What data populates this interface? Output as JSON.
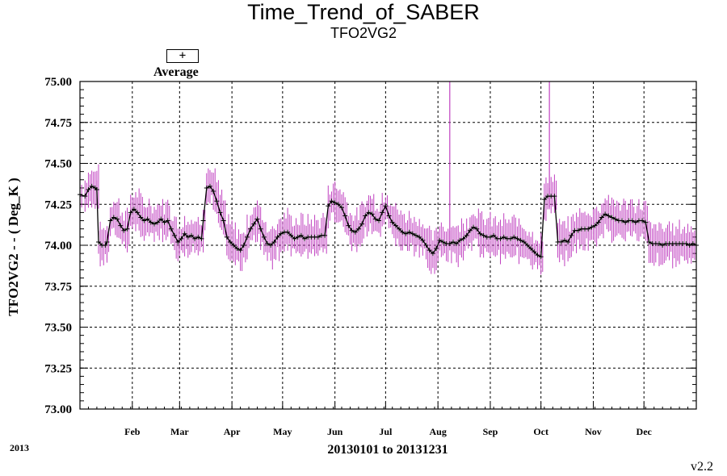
{
  "chart_data": {
    "type": "line",
    "title": "Time_Trend_of_SABER",
    "subtitle": "TFO2VG2",
    "ylabel": "TFO2VG2  - - ( Deg_K )",
    "xlabel": "20130101 to 20131231",
    "year_label": "2013",
    "version": "v2.2",
    "legend": {
      "symbol": "+",
      "label": "Average",
      "placement": "top-left"
    },
    "ylim": [
      73.0,
      75.0
    ],
    "yticks": [
      "75.00",
      "74.75",
      "74.50",
      "74.25",
      "74.00",
      "73.75",
      "73.50",
      "73.25",
      "73.00"
    ],
    "x_domain_day": [
      1,
      366
    ],
    "months": [
      {
        "label": "Feb",
        "day": 32
      },
      {
        "label": "Mar",
        "day": 60
      },
      {
        "label": "Apr",
        "day": 91
      },
      {
        "label": "May",
        "day": 121
      },
      {
        "label": "Jun",
        "day": 152
      },
      {
        "label": "Jul",
        "day": 182
      },
      {
        "label": "Aug",
        "day": 213
      },
      {
        "label": "Sep",
        "day": 244
      },
      {
        "label": "Oct",
        "day": 274
      },
      {
        "label": "Nov",
        "day": 305
      },
      {
        "label": "Dec",
        "day": 335
      }
    ],
    "grid": true,
    "series": [
      {
        "name": "Average",
        "color": "#000000",
        "errorbar_color": "#c040c0",
        "points": [
          [
            1,
            74.31
          ],
          [
            4,
            74.3
          ],
          [
            6,
            74.34
          ],
          [
            8,
            74.36
          ],
          [
            10,
            74.35
          ],
          [
            11,
            74.34
          ],
          [
            12,
            74.02
          ],
          [
            14,
            74.0
          ],
          [
            16,
            74.0
          ],
          [
            17,
            74.02
          ],
          [
            19,
            74.15
          ],
          [
            21,
            74.17
          ],
          [
            23,
            74.16
          ],
          [
            25,
            74.12
          ],
          [
            27,
            74.09
          ],
          [
            29,
            74.1
          ],
          [
            31,
            74.2
          ],
          [
            33,
            74.22
          ],
          [
            35,
            74.2
          ],
          [
            37,
            74.17
          ],
          [
            39,
            74.15
          ],
          [
            41,
            74.16
          ],
          [
            43,
            74.14
          ],
          [
            45,
            74.13
          ],
          [
            47,
            74.14
          ],
          [
            49,
            74.16
          ],
          [
            51,
            74.14
          ],
          [
            53,
            74.15
          ],
          [
            55,
            74.1
          ],
          [
            57,
            74.06
          ],
          [
            59,
            74.02
          ],
          [
            61,
            74.04
          ],
          [
            63,
            74.07
          ],
          [
            65,
            74.05
          ],
          [
            67,
            74.06
          ],
          [
            69,
            74.04
          ],
          [
            71,
            74.05
          ],
          [
            73,
            74.04
          ],
          [
            74,
            74.15
          ],
          [
            76,
            74.35
          ],
          [
            78,
            74.36
          ],
          [
            80,
            74.33
          ],
          [
            82,
            74.27
          ],
          [
            84,
            74.2
          ],
          [
            86,
            74.15
          ],
          [
            88,
            74.05
          ],
          [
            90,
            74.02
          ],
          [
            92,
            74.0
          ],
          [
            94,
            73.98
          ],
          [
            96,
            73.97
          ],
          [
            98,
            74.0
          ],
          [
            100,
            74.05
          ],
          [
            102,
            74.1
          ],
          [
            104,
            74.13
          ],
          [
            106,
            74.16
          ],
          [
            108,
            74.1
          ],
          [
            110,
            74.05
          ],
          [
            112,
            74.01
          ],
          [
            114,
            74.0
          ],
          [
            116,
            74.02
          ],
          [
            118,
            74.05
          ],
          [
            120,
            74.07
          ],
          [
            122,
            74.08
          ],
          [
            124,
            74.08
          ],
          [
            126,
            74.06
          ],
          [
            128,
            74.04
          ],
          [
            130,
            74.05
          ],
          [
            132,
            74.06
          ],
          [
            134,
            74.04
          ],
          [
            136,
            74.05
          ],
          [
            138,
            74.05
          ],
          [
            140,
            74.05
          ],
          [
            142,
            74.05
          ],
          [
            144,
            74.06
          ],
          [
            146,
            74.06
          ],
          [
            148,
            74.24
          ],
          [
            150,
            74.27
          ],
          [
            152,
            74.26
          ],
          [
            154,
            74.25
          ],
          [
            156,
            74.23
          ],
          [
            158,
            74.18
          ],
          [
            160,
            74.12
          ],
          [
            162,
            74.09
          ],
          [
            164,
            74.08
          ],
          [
            166,
            74.1
          ],
          [
            168,
            74.13
          ],
          [
            170,
            74.18
          ],
          [
            172,
            74.2
          ],
          [
            174,
            74.19
          ],
          [
            176,
            74.16
          ],
          [
            178,
            74.15
          ],
          [
            180,
            74.2
          ],
          [
            182,
            74.24
          ],
          [
            184,
            74.18
          ],
          [
            186,
            74.14
          ],
          [
            188,
            74.12
          ],
          [
            190,
            74.1
          ],
          [
            192,
            74.08
          ],
          [
            194,
            74.07
          ],
          [
            196,
            74.08
          ],
          [
            198,
            74.07
          ],
          [
            200,
            74.06
          ],
          [
            202,
            74.05
          ],
          [
            204,
            74.03
          ],
          [
            206,
            74.0
          ],
          [
            208,
            73.97
          ],
          [
            210,
            73.95
          ],
          [
            212,
            73.98
          ],
          [
            214,
            74.03
          ],
          [
            216,
            74.02
          ],
          [
            218,
            74.01
          ],
          [
            220,
            74.01
          ],
          [
            222,
            74.02
          ],
          [
            224,
            74.01
          ],
          [
            226,
            74.03
          ],
          [
            228,
            74.04
          ],
          [
            230,
            74.06
          ],
          [
            232,
            74.09
          ],
          [
            234,
            74.11
          ],
          [
            236,
            74.1
          ],
          [
            238,
            74.07
          ],
          [
            240,
            74.06
          ],
          [
            242,
            74.05
          ],
          [
            244,
            74.05
          ],
          [
            246,
            74.06
          ],
          [
            248,
            74.04
          ],
          [
            250,
            74.04
          ],
          [
            252,
            74.05
          ],
          [
            254,
            74.04
          ],
          [
            256,
            74.04
          ],
          [
            258,
            74.05
          ],
          [
            260,
            74.04
          ],
          [
            262,
            74.03
          ],
          [
            264,
            74.02
          ],
          [
            266,
            74.0
          ],
          [
            268,
            73.98
          ],
          [
            270,
            73.96
          ],
          [
            272,
            73.94
          ],
          [
            274,
            73.93
          ],
          [
            276,
            74.28
          ],
          [
            278,
            74.3
          ],
          [
            280,
            74.3
          ],
          [
            282,
            74.3
          ],
          [
            284,
            74.02
          ],
          [
            286,
            74.02
          ],
          [
            288,
            74.03
          ],
          [
            290,
            74.02
          ],
          [
            292,
            74.06
          ],
          [
            294,
            74.09
          ],
          [
            296,
            74.09
          ],
          [
            298,
            74.1
          ],
          [
            300,
            74.1
          ],
          [
            302,
            74.1
          ],
          [
            304,
            74.11
          ],
          [
            306,
            74.12
          ],
          [
            308,
            74.14
          ],
          [
            310,
            74.17
          ],
          [
            312,
            74.19
          ],
          [
            314,
            74.18
          ],
          [
            316,
            74.17
          ],
          [
            318,
            74.16
          ],
          [
            320,
            74.15
          ],
          [
            322,
            74.15
          ],
          [
            324,
            74.14
          ],
          [
            326,
            74.15
          ],
          [
            328,
            74.15
          ],
          [
            330,
            74.14
          ],
          [
            332,
            74.15
          ],
          [
            334,
            74.15
          ],
          [
            336,
            74.14
          ],
          [
            338,
            74.02
          ],
          [
            340,
            74.01
          ],
          [
            342,
            74.01
          ],
          [
            344,
            74.01
          ],
          [
            346,
            74.0
          ],
          [
            348,
            74.01
          ],
          [
            350,
            74.01
          ],
          [
            352,
            74.01
          ],
          [
            354,
            74.01
          ],
          [
            356,
            74.01
          ],
          [
            358,
            74.01
          ],
          [
            360,
            74.01
          ],
          [
            362,
            74.0
          ],
          [
            364,
            74.01
          ],
          [
            366,
            74.0
          ]
        ]
      }
    ],
    "spikes": [
      {
        "day": 220,
        "low": 74.0,
        "high": 75.0
      },
      {
        "day": 279,
        "low": 74.23,
        "high": 75.0
      }
    ]
  }
}
